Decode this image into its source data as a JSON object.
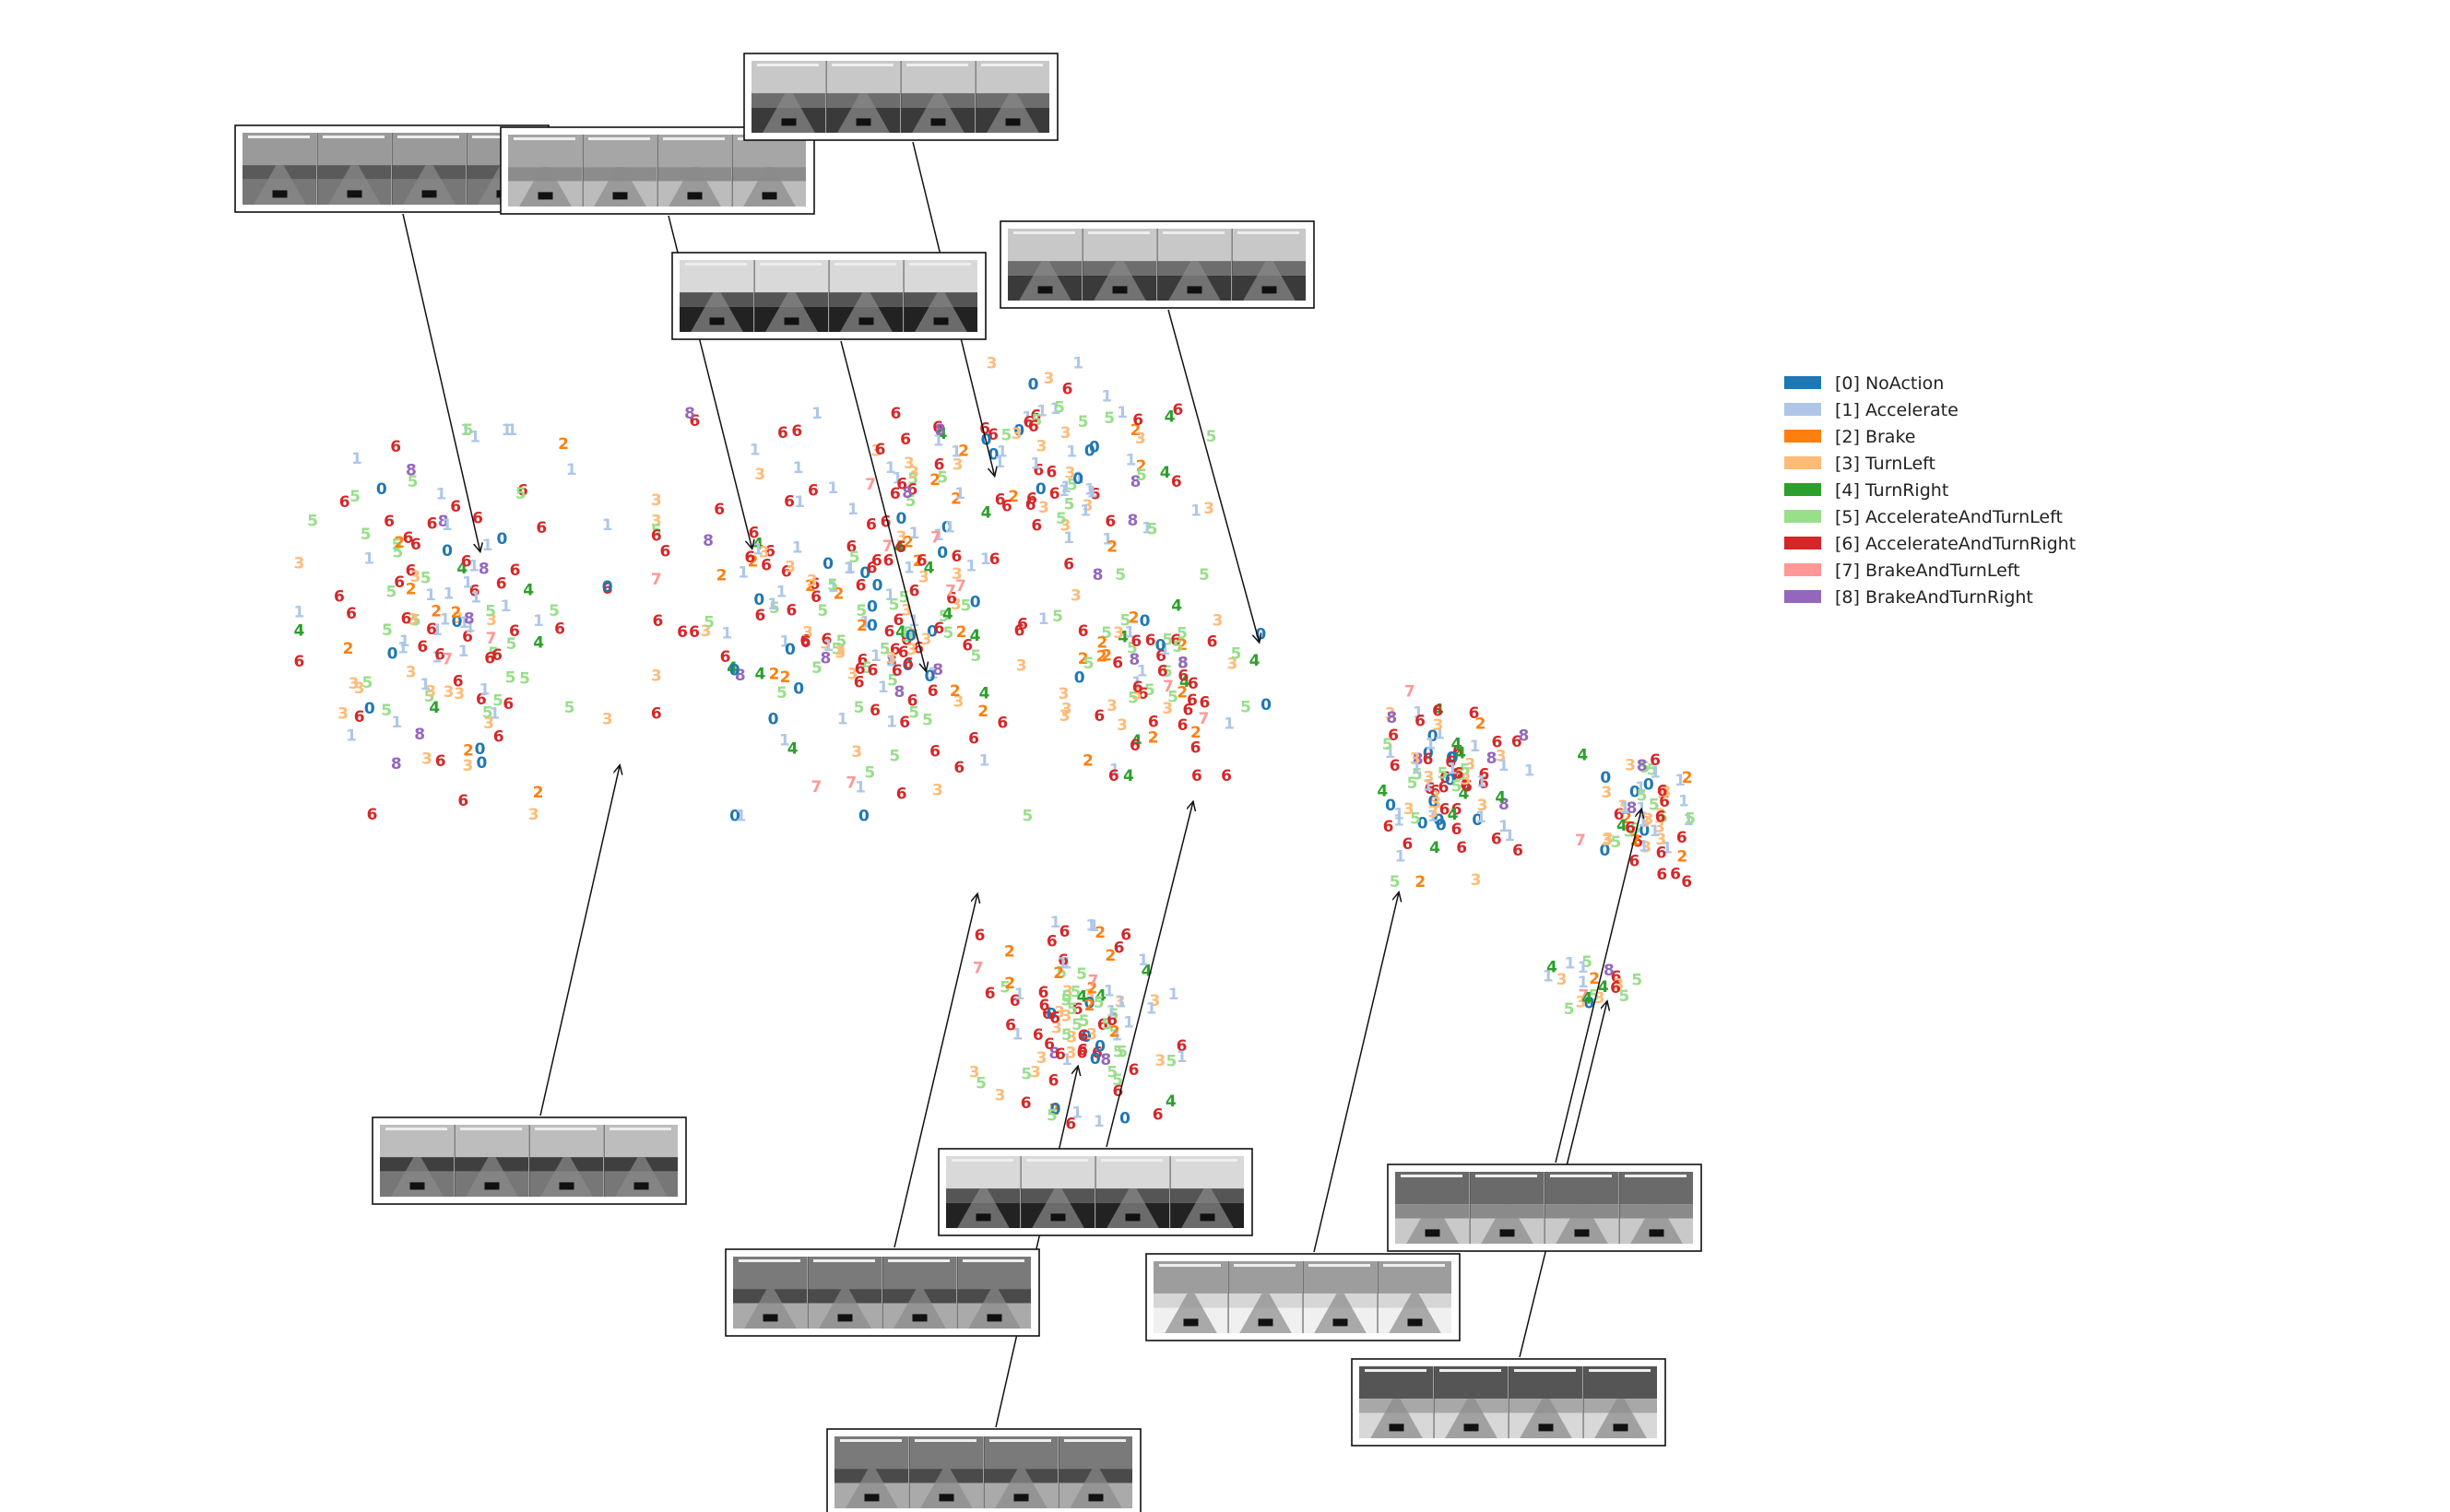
{
  "colors": {
    "0": "#1f77b4",
    "1": "#aec7e8",
    "2": "#ff7f0e",
    "3": "#ffbb78",
    "4": "#2ca02c",
    "5": "#98df8a",
    "6": "#d62728",
    "7": "#ff9896",
    "8": "#9467bd"
  },
  "legend": {
    "placement": "top-right",
    "entries": [
      {
        "label": "0",
        "text": "[0] NoAction"
      },
      {
        "label": "1",
        "text": "[1] Accelerate"
      },
      {
        "label": "2",
        "text": "[2] Brake"
      },
      {
        "label": "3",
        "text": "[3] TurnLeft"
      },
      {
        "label": "4",
        "text": "[4] TurnRight"
      },
      {
        "label": "5",
        "text": "[5] AccelerateAndTurnLeft"
      },
      {
        "label": "6",
        "text": "[6] AccelerateAndTurnRight"
      },
      {
        "label": "7",
        "text": "[7] BrakeAndTurnLeft"
      },
      {
        "label": "8",
        "text": "[8] BrakeAndTurnRight"
      }
    ]
  },
  "chart_data": {
    "type": "scatter",
    "title": "",
    "xlabel": "",
    "ylabel": "",
    "axes_visible": false,
    "xlim": [
      0,
      100
    ],
    "ylim": [
      0,
      100
    ],
    "clusters": [
      {
        "name": "left",
        "cx": 18.5,
        "cy": 58.5,
        "rx": 5.2,
        "ry": 10.5,
        "n": 140
      },
      {
        "name": "center",
        "cx": 35.5,
        "cy": 59,
        "rx": 7.2,
        "ry": 11,
        "n": 230
      },
      {
        "name": "center-top",
        "cx": 43,
        "cy": 69,
        "rx": 5.5,
        "ry": 5.5,
        "n": 90
      },
      {
        "name": "center-right",
        "cx": 47.5,
        "cy": 55,
        "rx": 3.5,
        "ry": 5.5,
        "n": 80
      },
      {
        "name": "lower",
        "cx": 44,
        "cy": 32,
        "rx": 3.5,
        "ry": 5.5,
        "n": 110
      },
      {
        "name": "right-a",
        "cx": 59,
        "cy": 48,
        "rx": 3,
        "ry": 5.5,
        "n": 95
      },
      {
        "name": "right-b",
        "cx": 67,
        "cy": 45.5,
        "rx": 2.2,
        "ry": 3.5,
        "n": 60
      },
      {
        "name": "right-c",
        "cx": 65,
        "cy": 34.5,
        "rx": 1.5,
        "ry": 1.3,
        "n": 22
      }
    ],
    "seed": 7
  },
  "thumbnails": [
    {
      "id": "thumb-top-left",
      "tone": "sky",
      "frames": 4,
      "target": [
        19.6,
        63.5
      ]
    },
    {
      "id": "thumb-top-left-2",
      "tone": "flat",
      "frames": 4,
      "target": [
        30.7,
        63.7
      ]
    },
    {
      "id": "thumb-top-center",
      "tone": "palms",
      "frames": 4,
      "target": [
        40.6,
        68.5
      ]
    },
    {
      "id": "thumb-start",
      "tone": "start",
      "frames": 4,
      "target": [
        37.8,
        55.6
      ]
    },
    {
      "id": "thumb-top-right",
      "tone": "palms",
      "frames": 4,
      "target": [
        51.4,
        57.5
      ]
    },
    {
      "id": "thumb-bottom-left",
      "tone": "forest",
      "frames": 4,
      "target": [
        25.3,
        49.4
      ]
    },
    {
      "id": "thumb-bottom-tunnel-a",
      "tone": "tunnel",
      "frames": 4,
      "target": [
        39.9,
        40.9
      ]
    },
    {
      "id": "thumb-bottom-start",
      "tone": "start",
      "frames": 4,
      "target": [
        48.7,
        47.0
      ]
    },
    {
      "id": "thumb-bottom-tunnel-b",
      "tone": "tunnel",
      "frames": 4,
      "target": [
        44.0,
        29.5
      ]
    },
    {
      "id": "thumb-bottom-beach",
      "tone": "beach",
      "frames": 4,
      "target": [
        57.1,
        41.0
      ]
    },
    {
      "id": "thumb-right-grey",
      "tone": "grey",
      "frames": 4,
      "target": [
        67.0,
        46.5
      ]
    },
    {
      "id": "thumb-right-sand",
      "tone": "sand",
      "frames": 4,
      "target": [
        65.6,
        33.8
      ]
    }
  ]
}
